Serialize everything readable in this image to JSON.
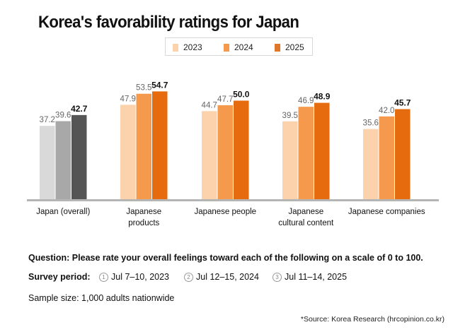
{
  "chart_data": {
    "type": "bar",
    "title": "Korea's favorability ratings for Japan",
    "xlabel": "",
    "ylabel": "",
    "ylim": [
      0,
      100
    ],
    "grid": false,
    "legend_position": "top-center",
    "categories": [
      "Japan (overall)",
      "Japanese products",
      "Japanese people",
      "Japanese cultural content",
      "Japanese companies"
    ],
    "category_lines": [
      [
        "Japan (overall)"
      ],
      [
        "Japanese",
        "products"
      ],
      [
        "Japanese people"
      ],
      [
        "Japanese",
        "cultural content"
      ],
      [
        "Japanese companies"
      ]
    ],
    "series": [
      {
        "name": "2023",
        "values": [
          37.2,
          47.9,
          44.7,
          39.5,
          35.6
        ]
      },
      {
        "name": "2024",
        "values": [
          39.6,
          53.5,
          47.7,
          46.9,
          42.0
        ]
      },
      {
        "name": "2025",
        "values": [
          42.7,
          54.7,
          50.0,
          48.9,
          45.7
        ]
      }
    ],
    "colors": {
      "orange": [
        "#fbd2ac",
        "#f59a4c",
        "#e66a0e"
      ],
      "gray": [
        "#d9d9d9",
        "#a8a8a8",
        "#555555"
      ]
    },
    "label_colors": [
      "#666666",
      "#666666",
      "#111111"
    ]
  },
  "legend": {
    "items": [
      {
        "label": "2023",
        "color": "#fbd2ac"
      },
      {
        "label": "2024",
        "color": "#f59a4c"
      },
      {
        "label": "2025",
        "color": "#e0762a"
      }
    ]
  },
  "notes": {
    "question": "Question: Please rate your overall feelings toward each of the following on a scale of 0 to 100.",
    "survey_label": "Survey period:",
    "periods": [
      {
        "num": "1",
        "text": "Jul 7–10, 2023"
      },
      {
        "num": "2",
        "text": "Jul 12–15, 2024"
      },
      {
        "num": "3",
        "text": "Jul 11–14, 2025"
      }
    ],
    "sample": "Sample size: 1,000 adults nationwide",
    "source": "*Source: Korea Research (hrcopinion.co.kr)"
  }
}
